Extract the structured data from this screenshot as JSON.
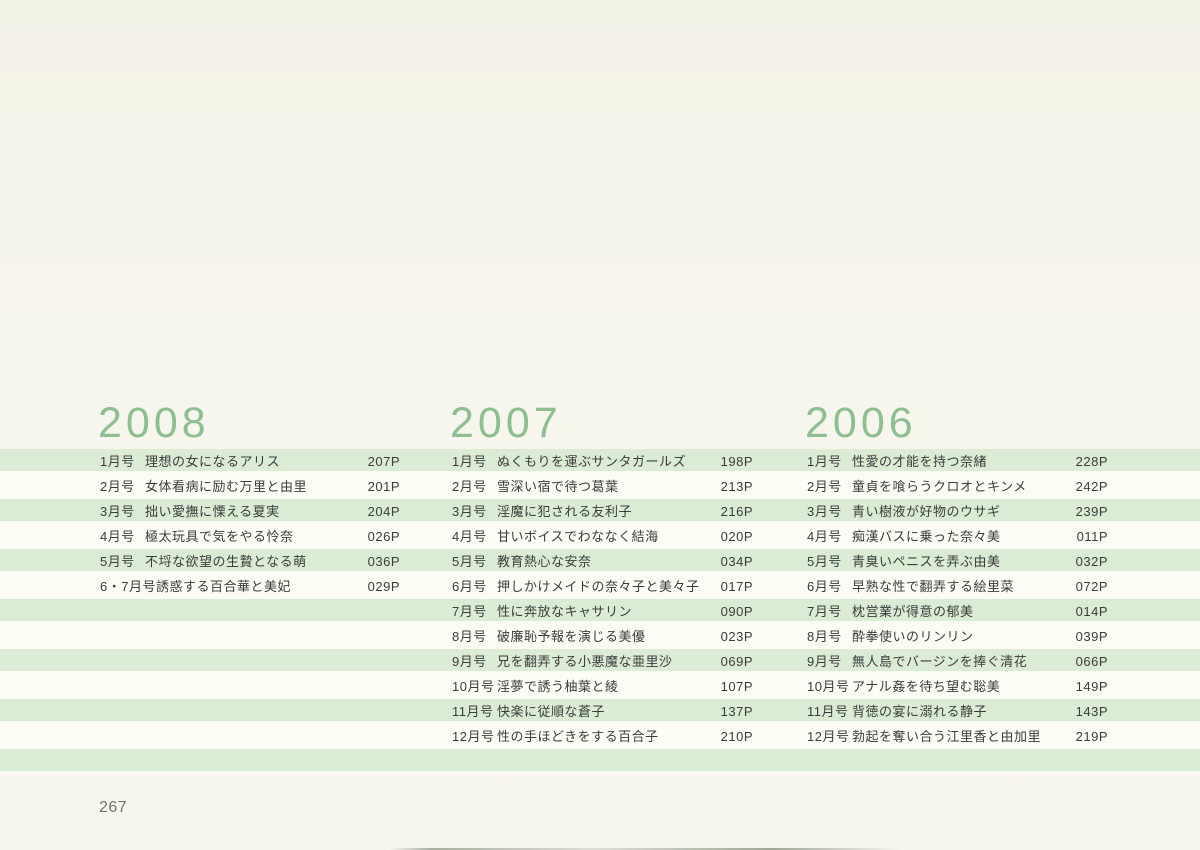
{
  "page": {
    "page_number": "267"
  },
  "colors": {
    "stripe_green": "#daecd3",
    "heading_green": "#8dbf90",
    "text": "#3c3c3c",
    "paper": "#f6f5ec"
  },
  "columns": [
    {
      "year": "2008",
      "entries": [
        {
          "month": "1月号",
          "title": "理想の女になるアリス",
          "page": "207P"
        },
        {
          "month": "2月号",
          "title": "女体看病に励む万里と由里",
          "page": "201P"
        },
        {
          "month": "3月号",
          "title": "拙い愛撫に慄える夏実",
          "page": "204P"
        },
        {
          "month": "4月号",
          "title": "極太玩具で気をやる怜奈",
          "page": "026P"
        },
        {
          "month": "5月号",
          "title": "不埒な欲望の生贄となる萌",
          "page": "036P"
        },
        {
          "month": "6・7月号",
          "title": "誘惑する百合華と美妃",
          "page": "029P"
        }
      ]
    },
    {
      "year": "2007",
      "entries": [
        {
          "month": "1月号",
          "title": "ぬくもりを運ぶサンタガールズ",
          "page": "198P"
        },
        {
          "month": "2月号",
          "title": "雪深い宿で待つ葛葉",
          "page": "213P"
        },
        {
          "month": "3月号",
          "title": "淫魔に犯される友利子",
          "page": "216P"
        },
        {
          "month": "4月号",
          "title": "甘いボイスでわななく結海",
          "page": "020P"
        },
        {
          "month": "5月号",
          "title": "教育熱心な安奈",
          "page": "034P"
        },
        {
          "month": "6月号",
          "title": "押しかけメイドの奈々子と美々子",
          "page": "017P"
        },
        {
          "month": "7月号",
          "title": "性に奔放なキャサリン",
          "page": "090P"
        },
        {
          "month": "8月号",
          "title": "破廉恥予報を演じる美優",
          "page": "023P"
        },
        {
          "month": "9月号",
          "title": "兄を翻弄する小悪魔な亜里沙",
          "page": "069P"
        },
        {
          "month": "10月号",
          "title": "淫夢で誘う柚葉と綾",
          "page": "107P"
        },
        {
          "month": "11月号",
          "title": "快楽に従順な蒼子",
          "page": "137P"
        },
        {
          "month": "12月号",
          "title": "性の手ほどきをする百合子",
          "page": "210P"
        }
      ]
    },
    {
      "year": "2006",
      "entries": [
        {
          "month": "1月号",
          "title": "性愛の才能を持つ奈緒",
          "page": "228P"
        },
        {
          "month": "2月号",
          "title": "童貞を喰らうクロオとキンメ",
          "page": "242P"
        },
        {
          "month": "3月号",
          "title": "青い樹液が好物のウサギ",
          "page": "239P"
        },
        {
          "month": "4月号",
          "title": "痴漢バスに乗った奈々美",
          "page": "011P"
        },
        {
          "month": "5月号",
          "title": "青臭いペニスを弄ぶ由美",
          "page": "032P"
        },
        {
          "month": "6月号",
          "title": "早熟な性で翻弄する絵里菜",
          "page": "072P"
        },
        {
          "month": "7月号",
          "title": "枕営業が得意の郁美",
          "page": "014P"
        },
        {
          "month": "8月号",
          "title": "酔拳使いのリンリン",
          "page": "039P"
        },
        {
          "month": "9月号",
          "title": "無人島でバージンを捧ぐ清花",
          "page": "066P"
        },
        {
          "month": "10月号",
          "title": "アナル姦を待ち望む聡美",
          "page": "149P"
        },
        {
          "month": "11月号",
          "title": "背徳の宴に溺れる静子",
          "page": "143P"
        },
        {
          "month": "12月号",
          "title": "勃起を奪い合う江里香と由加里",
          "page": "219P"
        }
      ]
    }
  ]
}
